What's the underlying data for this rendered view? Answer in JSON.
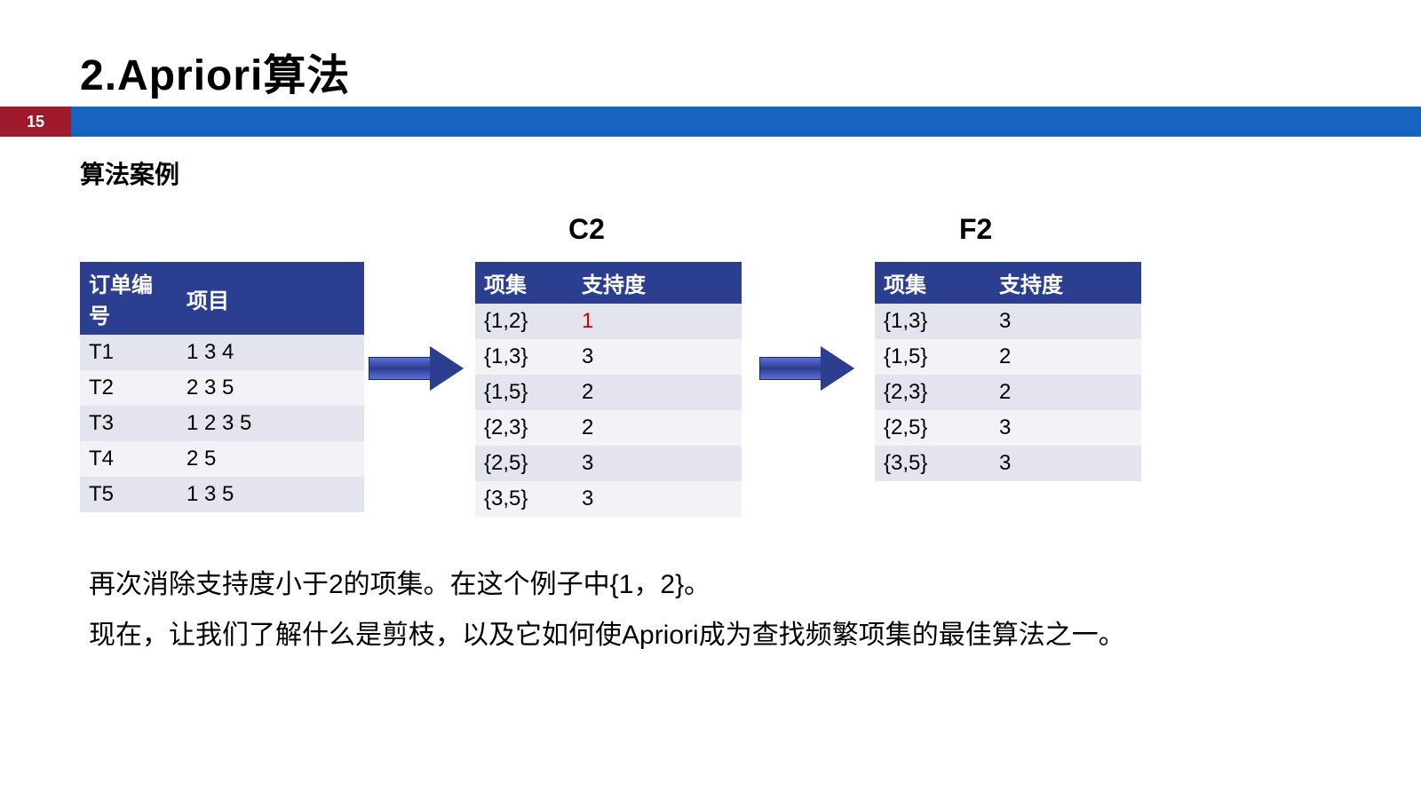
{
  "title": "2.Apriori算法",
  "page_number": "15",
  "subtitle": "算法案例",
  "labels": {
    "c2": "C2",
    "f2": "F2"
  },
  "colors": {
    "header_bg": "#2c3e8f",
    "bar_blue": "#1664c0",
    "bar_red": "#a01a2d",
    "highlight": "#d40000",
    "row_even": "#e4e4ee",
    "row_odd": "#f3f3f7"
  },
  "table1": {
    "headers": [
      "订单编号",
      "项目"
    ],
    "rows": [
      [
        "T1",
        "1  3  4"
      ],
      [
        "T2",
        "2  3  5"
      ],
      [
        "T3",
        "1  2  3  5"
      ],
      [
        "T4",
        "2  5"
      ],
      [
        "T5",
        "1  3  5"
      ]
    ]
  },
  "table2": {
    "headers": [
      "项集",
      "支持度"
    ],
    "rows": [
      {
        "set": "{1,2}",
        "sup": "1",
        "hl": true
      },
      {
        "set": "{1,3}",
        "sup": "3",
        "hl": false
      },
      {
        "set": "{1,5}",
        "sup": "2",
        "hl": false
      },
      {
        "set": "{2,3}",
        "sup": "2",
        "hl": false
      },
      {
        "set": "{2,5}",
        "sup": "3",
        "hl": false
      },
      {
        "set": "{3,5}",
        "sup": "3",
        "hl": false
      }
    ]
  },
  "table3": {
    "headers": [
      "项集",
      "支持度"
    ],
    "rows": [
      [
        "{1,3}",
        "3"
      ],
      [
        "{1,5}",
        "2"
      ],
      [
        "{2,3}",
        "2"
      ],
      [
        "{2,5}",
        "3"
      ],
      [
        "{3,5}",
        "3"
      ]
    ]
  },
  "body_text": {
    "line1": "再次消除支持度小于2的项集。在这个例子中{1，2}。",
    "line2": "现在，让我们了解什么是剪枝，以及它如何使Apriori成为查找频繁项集的最佳算法之一。"
  }
}
